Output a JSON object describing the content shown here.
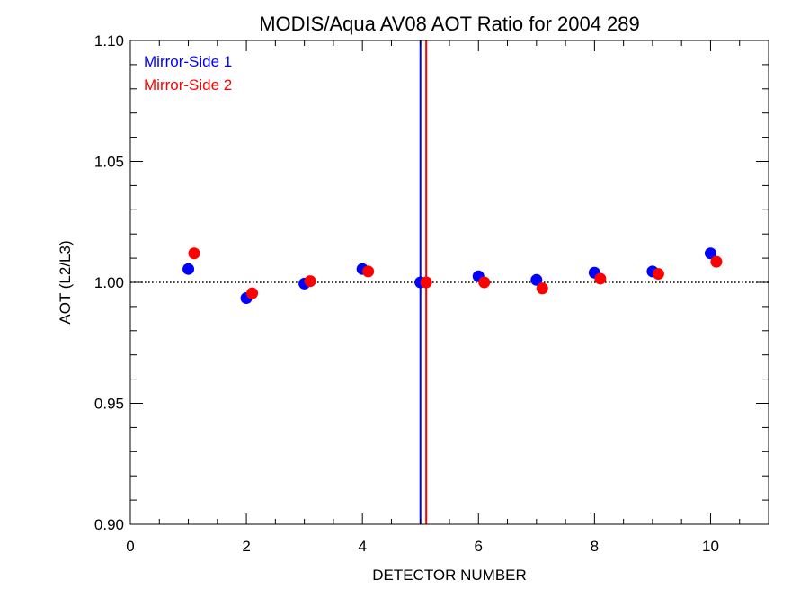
{
  "chart_data": {
    "type": "scatter",
    "title": "MODIS/Aqua AV08 AOT Ratio for 2004 289",
    "xlabel": "DETECTOR NUMBER",
    "ylabel": "AOT (L2/L3)",
    "xlim": [
      0,
      11
    ],
    "ylim": [
      0.9,
      1.1
    ],
    "x_ticks": [
      0,
      2,
      4,
      6,
      8,
      10
    ],
    "x_tick_labels": [
      "0",
      "2",
      "4",
      "6",
      "8",
      "10"
    ],
    "x_minor_step": 0.5,
    "y_ticks": [
      0.9,
      0.95,
      1.0,
      1.05,
      1.1
    ],
    "y_tick_labels": [
      "0.90",
      "0.95",
      "1.00",
      "1.05",
      "1.10"
    ],
    "y_minor_step": 0.01,
    "reference_line": {
      "y": 1.0,
      "style": "dotted",
      "color": "#000000"
    },
    "vertical_lines": [
      {
        "x": 5.0,
        "color": "#0000ff"
      },
      {
        "x": 5.1,
        "color": "#ff0000"
      }
    ],
    "legend_position": "top-left",
    "series": [
      {
        "name": "Mirror-Side 1",
        "color": "#0000ff",
        "x": [
          1,
          2,
          3,
          4,
          5,
          6,
          7,
          8,
          9,
          10
        ],
        "y": [
          1.0055,
          0.9935,
          0.9995,
          1.0055,
          1.0,
          1.0025,
          1.001,
          1.004,
          1.0045,
          1.012
        ]
      },
      {
        "name": "Mirror-Side 2",
        "color": "#ff0000",
        "x": [
          1.1,
          2.1,
          3.1,
          4.1,
          5.1,
          6.1,
          7.1,
          8.1,
          9.1,
          10.1
        ],
        "y": [
          1.012,
          0.9955,
          1.0005,
          1.0045,
          1.0,
          1.0,
          0.9975,
          1.0015,
          1.0035,
          1.0085
        ]
      }
    ]
  }
}
